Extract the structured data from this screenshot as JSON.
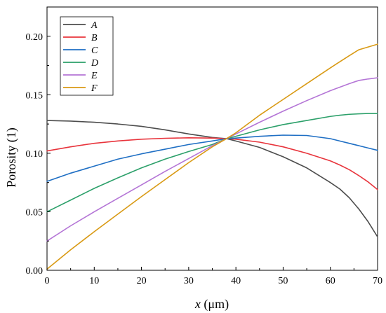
{
  "chart_data": {
    "type": "line",
    "xlabel_var": "x",
    "xlabel_unit": " (μm)",
    "ylabel": "Porosity (1)",
    "xlim": [
      0,
      70
    ],
    "ylim": [
      0,
      0.225
    ],
    "x_ticks": [
      0,
      10,
      20,
      30,
      40,
      50,
      60,
      70
    ],
    "x_tick_labels": [
      "0",
      "10",
      "20",
      "30",
      "40",
      "50",
      "60",
      "70"
    ],
    "y_ticks": [
      0,
      0.05,
      0.1,
      0.15,
      0.2
    ],
    "y_tick_labels": [
      "0.00",
      "0.05",
      "0.10",
      "0.15",
      "0.20"
    ],
    "grid": false,
    "legend_position": "top-left",
    "x": [
      0,
      5,
      10,
      15,
      20,
      25,
      30,
      35,
      38,
      40,
      45,
      50,
      55,
      60,
      62,
      64,
      66,
      68,
      70
    ],
    "series": [
      {
        "name": "A",
        "color": "#4d4d4d",
        "values": [
          0.128,
          0.1275,
          0.1265,
          0.125,
          0.123,
          0.12,
          0.1165,
          0.1135,
          0.1125,
          0.1105,
          0.105,
          0.097,
          0.0875,
          0.075,
          0.0695,
          0.062,
          0.0525,
          0.0415,
          0.0285
        ]
      },
      {
        "name": "B",
        "color": "#e8343c",
        "values": [
          0.102,
          0.1055,
          0.1085,
          0.1105,
          0.112,
          0.1128,
          0.1132,
          0.113,
          0.1125,
          0.112,
          0.1095,
          0.1055,
          0.1,
          0.0935,
          0.09,
          0.086,
          0.081,
          0.0755,
          0.069
        ]
      },
      {
        "name": "C",
        "color": "#1f6fc4",
        "values": [
          0.076,
          0.083,
          0.089,
          0.095,
          0.0995,
          0.1035,
          0.1075,
          0.1105,
          0.1125,
          0.113,
          0.1145,
          0.1155,
          0.1152,
          0.1125,
          0.1105,
          0.1085,
          0.1065,
          0.1045,
          0.1025
        ]
      },
      {
        "name": "D",
        "color": "#2ca06a",
        "values": [
          0.05,
          0.06,
          0.07,
          0.079,
          0.0875,
          0.095,
          0.1015,
          0.1075,
          0.1125,
          0.1145,
          0.12,
          0.1245,
          0.128,
          0.1315,
          0.1325,
          0.1333,
          0.1337,
          0.134,
          0.134
        ]
      },
      {
        "name": "E",
        "color": "#b475d6",
        "values": [
          0.025,
          0.038,
          0.05,
          0.0615,
          0.073,
          0.0845,
          0.0955,
          0.1065,
          0.1125,
          0.1165,
          0.1265,
          0.136,
          0.145,
          0.1535,
          0.1565,
          0.1595,
          0.1622,
          0.1635,
          0.1645
        ]
      },
      {
        "name": "F",
        "color": "#d99a14",
        "values": [
          0.001,
          0.0175,
          0.033,
          0.048,
          0.063,
          0.0775,
          0.092,
          0.1055,
          0.1125,
          0.1175,
          0.1325,
          0.146,
          0.1595,
          0.173,
          0.1782,
          0.1834,
          0.1884,
          0.1908,
          0.1932
        ]
      }
    ]
  }
}
